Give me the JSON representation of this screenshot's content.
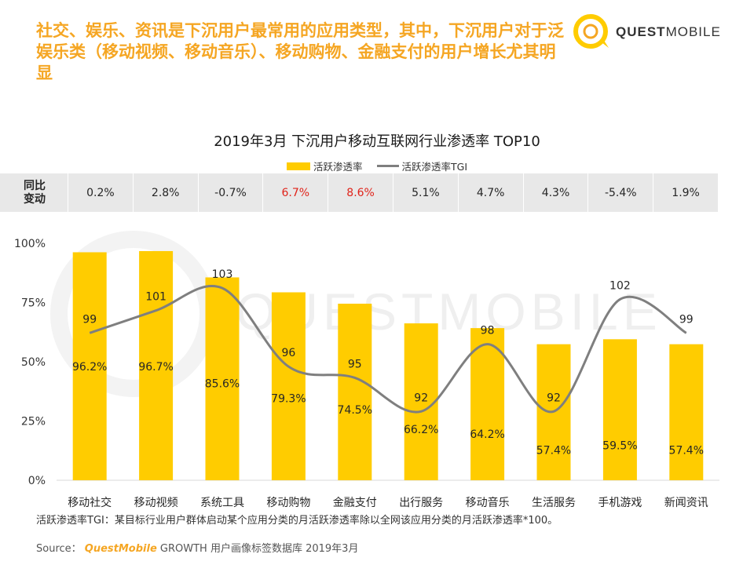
{
  "headline": "社交、娱乐、资讯是下沉用户最常用的应用类型，其中，下沉用户对于泛娱乐类（移动视频、移动音乐）、移动购物、金融支付的用户增长尤其明显",
  "logo": {
    "part1": "QUEST",
    "part2": "MOBILE"
  },
  "watermark": "QUESTMOBILE",
  "yoy": {
    "header": "同比\n变动",
    "values": [
      "0.2%",
      "2.8%",
      "-0.7%",
      "6.7%",
      "8.6%",
      "5.1%",
      "4.7%",
      "4.3%",
      "-5.4%",
      "1.9%"
    ],
    "highlight_color": "#e0231a",
    "highlight_indices": [
      3,
      4
    ]
  },
  "chart_data": {
    "type": "bar",
    "title": "2019年3月 下沉用户移动互联网行业渗透率 TOP10",
    "categories": [
      "移动社交",
      "移动视频",
      "系统工具",
      "移动购物",
      "金融支付",
      "出行服务",
      "移动音乐",
      "生活服务",
      "手机游戏",
      "新闻资讯"
    ],
    "series": [
      {
        "name": "活跃渗透率",
        "type": "bar",
        "color": "#ffcc00",
        "values": [
          96.2,
          96.7,
          85.6,
          79.3,
          74.5,
          66.2,
          64.2,
          57.4,
          59.5,
          57.4
        ],
        "labels": [
          "96.2%",
          "96.7%",
          "85.6%",
          "79.3%",
          "74.5%",
          "66.2%",
          "64.2%",
          "57.4%",
          "59.5%",
          "57.4%"
        ]
      },
      {
        "name": "活跃渗透率TGI",
        "type": "line",
        "color": "#7f7f7f",
        "values": [
          99,
          101,
          103,
          96,
          95,
          92,
          98,
          92,
          102,
          99
        ]
      }
    ],
    "y_ticks": [
      "100%",
      "75%",
      "50%",
      "25%",
      "0%"
    ],
    "ylim": [
      0,
      100
    ],
    "legend_position": "top-center"
  },
  "footnote": "活跃渗透率TGI：某目标行业用户群体启动某个应用分类的月活跃渗透率除以全网该应用分类的月活跃渗透率*100。",
  "source": {
    "label": "Source：",
    "brand": "QuestMobile",
    "rest": "GROWTH 用户画像标签数据库 2019年3月"
  }
}
